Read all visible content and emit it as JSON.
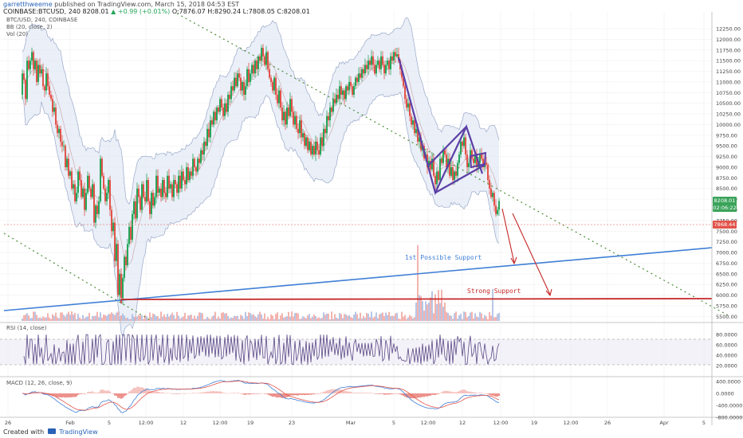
{
  "header": {
    "user": "garretthweeme",
    "published": "published on TradingView.com, March 15, 2018 04:53 EST",
    "symbol_line": "COINBASE:BTCUSD, 240",
    "price": "8208.01",
    "change": "+0.99 (+0.01%)",
    "ohlc": "O:7876.07 H:8290.24 L:7808.05 C:8208.01"
  },
  "indicators": {
    "symbol": "BTC/USD, 240, COINBASE",
    "bb": "BB (20, close, 2)",
    "vol": "Vol (20)",
    "rsi": "RSI (14, close)",
    "macd": "MACD (12, 26, close, 9)"
  },
  "price_axis": {
    "ticks": [
      "12250.00",
      "12000.00",
      "11750.00",
      "11500.00",
      "11250.00",
      "11000.00",
      "10750.00",
      "10500.00",
      "10250.00",
      "10000.00",
      "9750.00",
      "9500.00",
      "9250.00",
      "9000.00",
      "8750.00",
      "8500.00",
      "8250.00",
      "8000.00",
      "7750.00",
      "7500.00",
      "7250.00",
      "7000.00",
      "6750.00",
      "6500.00",
      "6250.00",
      "6000.00",
      "5750.00",
      "5500.00"
    ],
    "labels": {
      "current": "8208.01",
      "countdown": "02:06:22",
      "red": "7868.44"
    }
  },
  "rsi_axis": [
    "80.0000",
    "60.0000",
    "40.0000",
    "20.0000"
  ],
  "macd_axis": [
    "400.0000",
    "0.0000",
    "-400.0000",
    "-800.0000"
  ],
  "time_axis": [
    "26",
    "Feb",
    "5",
    "12:00",
    "12",
    "12:00",
    "19",
    "23",
    "Mar",
    "5",
    "12:00",
    "12",
    "12:00",
    "19",
    "12:00",
    "26",
    "Apr",
    "5"
  ],
  "annotations": {
    "first_support": "1st Possible Support",
    "strong_support": "Strong Support"
  },
  "footer": {
    "created": "Created with",
    "brand": "TradingView"
  },
  "colors": {
    "up": "#26a65b",
    "down": "#e2534a",
    "trend_blue": "#3f7fd6",
    "support_red": "#c62828",
    "wedge": "#5b3fa6",
    "dotted_green": "#4e8f3a",
    "bb_fill": "#dce4f4"
  },
  "chart_data": {
    "type": "candlestick",
    "title": "BTC/USD, 240, COINBASE",
    "ylim": [
      5450,
      12400
    ],
    "key_levels": {
      "strong_support": 5930,
      "last_close": 8208.01
    },
    "path_values": [
      [
        26,
        10700
      ],
      [
        28,
        11200
      ],
      [
        30,
        11050
      ],
      [
        32,
        10600
      ],
      [
        34,
        11500
      ],
      [
        36,
        11300
      ],
      [
        38,
        11500
      ],
      [
        40,
        11700
      ],
      [
        42,
        11300
      ],
      [
        44,
        11500
      ],
      [
        46,
        11000
      ],
      [
        48,
        11400
      ],
      [
        50,
        11200
      ],
      [
        52,
        11300
      ],
      [
        54,
        10900
      ],
      [
        56,
        10800
      ],
      [
        58,
        11200
      ],
      [
        60,
        10900
      ],
      [
        62,
        10700
      ],
      [
        64,
        10600
      ],
      [
        66,
        10300
      ],
      [
        68,
        10400
      ],
      [
        70,
        10000
      ],
      [
        72,
        9800
      ],
      [
        74,
        9900
      ],
      [
        76,
        9600
      ],
      [
        78,
        9500
      ],
      [
        80,
        9500
      ],
      [
        82,
        9000
      ],
      [
        84,
        9200
      ],
      [
        86,
        8800
      ],
      [
        88,
        8900
      ],
      [
        90,
        8500
      ],
      [
        92,
        8600
      ],
      [
        94,
        8200
      ],
      [
        96,
        8400
      ],
      [
        98,
        8900
      ],
      [
        100,
        8700
      ],
      [
        102,
        8300
      ],
      [
        104,
        8500
      ],
      [
        106,
        8000
      ],
      [
        108,
        8400
      ],
      [
        110,
        8800
      ],
      [
        112,
        8500
      ],
      [
        114,
        8300
      ],
      [
        116,
        8600
      ],
      [
        118,
        7700
      ],
      [
        120,
        8100
      ],
      [
        122,
        7900
      ],
      [
        124,
        8200
      ],
      [
        126,
        9200
      ],
      [
        128,
        8800
      ],
      [
        130,
        8500
      ],
      [
        132,
        8200
      ],
      [
        134,
        8400
      ],
      [
        136,
        8700
      ],
      [
        138,
        8000
      ],
      [
        140,
        7500
      ],
      [
        142,
        7700
      ],
      [
        144,
        6800
      ],
      [
        146,
        7200
      ],
      [
        148,
        6000
      ],
      [
        150,
        6500
      ],
      [
        152,
        5930
      ],
      [
        154,
        6400
      ],
      [
        156,
        6900
      ],
      [
        158,
        6700
      ],
      [
        160,
        7200
      ],
      [
        162,
        7600
      ],
      [
        164,
        7300
      ],
      [
        166,
        7900
      ],
      [
        168,
        8200
      ],
      [
        170,
        7800
      ],
      [
        172,
        8500
      ],
      [
        174,
        8300
      ],
      [
        176,
        8000
      ],
      [
        178,
        8600
      ],
      [
        180,
        8300
      ],
      [
        182,
        8200
      ],
      [
        184,
        8700
      ],
      [
        186,
        8200
      ],
      [
        188,
        7900
      ],
      [
        190,
        8400
      ],
      [
        192,
        8100
      ],
      [
        194,
        8300
      ],
      [
        196,
        8800
      ],
      [
        198,
        8400
      ],
      [
        200,
        8500
      ],
      [
        202,
        8300
      ],
      [
        204,
        8700
      ],
      [
        206,
        8400
      ],
      [
        208,
        8300
      ],
      [
        210,
        8800
      ],
      [
        212,
        8500
      ],
      [
        214,
        8600
      ],
      [
        216,
        8300
      ],
      [
        218,
        8700
      ],
      [
        220,
        8600
      ],
      [
        222,
        8400
      ],
      [
        224,
        8800
      ],
      [
        226,
        8500
      ],
      [
        228,
        8900
      ],
      [
        230,
        8700
      ],
      [
        232,
        8600
      ],
      [
        234,
        9000
      ],
      [
        236,
        8700
      ],
      [
        238,
        8900
      ],
      [
        240,
        8800
      ],
      [
        242,
        9200
      ],
      [
        244,
        9000
      ],
      [
        246,
        8900
      ],
      [
        248,
        9200
      ],
      [
        250,
        9100
      ],
      [
        252,
        9400
      ],
      [
        254,
        9300
      ],
      [
        256,
        9600
      ],
      [
        258,
        9500
      ],
      [
        260,
        9900
      ],
      [
        262,
        9700
      ],
      [
        264,
        10100
      ],
      [
        266,
        10000
      ],
      [
        268,
        10300
      ],
      [
        270,
        10100
      ],
      [
        272,
        10400
      ],
      [
        274,
        10300
      ],
      [
        276,
        10600
      ],
      [
        278,
        10400
      ],
      [
        280,
        10200
      ],
      [
        282,
        10500
      ],
      [
        284,
        10300
      ],
      [
        286,
        10700
      ],
      [
        288,
        10600
      ],
      [
        290,
        10900
      ],
      [
        292,
        10800
      ],
      [
        294,
        11100
      ],
      [
        296,
        10900
      ],
      [
        298,
        11200
      ],
      [
        300,
        11100
      ],
      [
        302,
        10800
      ],
      [
        304,
        11000
      ],
      [
        306,
        10700
      ],
      [
        308,
        10900
      ],
      [
        310,
        11300
      ],
      [
        312,
        11000
      ],
      [
        314,
        11200
      ],
      [
        316,
        11400
      ],
      [
        318,
        11200
      ],
      [
        320,
        11500
      ],
      [
        322,
        11300
      ],
      [
        324,
        11600
      ],
      [
        326,
        11500
      ],
      [
        328,
        11800
      ],
      [
        330,
        11600
      ],
      [
        332,
        11400
      ],
      [
        334,
        11700
      ],
      [
        336,
        11300
      ],
      [
        338,
        11100
      ],
      [
        340,
        11000
      ],
      [
        342,
        10800
      ],
      [
        344,
        11100
      ],
      [
        346,
        10700
      ],
      [
        348,
        10500
      ],
      [
        350,
        10800
      ],
      [
        352,
        10400
      ],
      [
        354,
        10100
      ],
      [
        356,
        10300
      ],
      [
        358,
        10000
      ],
      [
        360,
        10400
      ],
      [
        362,
        10200
      ],
      [
        364,
        10600
      ],
      [
        366,
        10300
      ],
      [
        368,
        10000
      ],
      [
        370,
        10200
      ],
      [
        372,
        9900
      ],
      [
        374,
        9800
      ],
      [
        376,
        10100
      ],
      [
        378,
        9700
      ],
      [
        380,
        9800
      ],
      [
        382,
        9500
      ],
      [
        384,
        9700
      ],
      [
        386,
        9400
      ],
      [
        388,
        9600
      ],
      [
        390,
        9300
      ],
      [
        392,
        9500
      ],
      [
        394,
        9300
      ],
      [
        396,
        9600
      ],
      [
        398,
        9400
      ],
      [
        400,
        9300
      ],
      [
        402,
        9700
      ],
      [
        404,
        9500
      ],
      [
        406,
        9900
      ],
      [
        408,
        9800
      ],
      [
        410,
        10200
      ],
      [
        412,
        10100
      ],
      [
        414,
        10400
      ],
      [
        416,
        10300
      ],
      [
        418,
        10600
      ],
      [
        420,
        10500
      ],
      [
        422,
        10700
      ],
      [
        424,
        10600
      ],
      [
        426,
        10900
      ],
      [
        428,
        10700
      ],
      [
        430,
        10800
      ],
      [
        432,
        10600
      ],
      [
        434,
        10900
      ],
      [
        436,
        10800
      ],
      [
        438,
        11000
      ],
      [
        440,
        10900
      ],
      [
        442,
        10700
      ],
      [
        444,
        10900
      ],
      [
        446,
        11100
      ],
      [
        448,
        11000
      ],
      [
        450,
        11200
      ],
      [
        452,
        11100
      ],
      [
        454,
        11300
      ],
      [
        456,
        11200
      ],
      [
        458,
        11400
      ],
      [
        460,
        11300
      ],
      [
        462,
        11500
      ],
      [
        464,
        11400
      ],
      [
        466,
        11600
      ],
      [
        468,
        11400
      ],
      [
        470,
        11200
      ],
      [
        472,
        11400
      ],
      [
        474,
        11500
      ],
      [
        476,
        11300
      ],
      [
        478,
        11600
      ],
      [
        480,
        11400
      ],
      [
        482,
        11200
      ],
      [
        484,
        11400
      ],
      [
        486,
        11500
      ],
      [
        488,
        11300
      ],
      [
        490,
        11600
      ],
      [
        492,
        11500
      ],
      [
        494,
        11700
      ],
      [
        496,
        11600
      ],
      [
        498,
        11650
      ],
      [
        500,
        11500
      ],
      [
        502,
        11300
      ],
      [
        504,
        11100
      ],
      [
        506,
        10900
      ],
      [
        508,
        10600
      ],
      [
        510,
        10400
      ],
      [
        512,
        10500
      ],
      [
        514,
        10200
      ],
      [
        516,
        10000
      ],
      [
        518,
        10100
      ],
      [
        520,
        9800
      ],
      [
        522,
        9900
      ],
      [
        524,
        9600
      ],
      [
        526,
        9700
      ],
      [
        528,
        9400
      ],
      [
        530,
        9500
      ],
      [
        532,
        9200
      ],
      [
        534,
        9300
      ],
      [
        536,
        9000
      ],
      [
        538,
        9150
      ],
      [
        540,
        8950
      ],
      [
        542,
        9200
      ],
      [
        544,
        8800
      ],
      [
        546,
        8600
      ],
      [
        548,
        8900
      ],
      [
        550,
        8700
      ],
      [
        552,
        9200
      ],
      [
        554,
        9100
      ],
      [
        556,
        9400
      ],
      [
        558,
        9300
      ],
      [
        560,
        9000
      ],
      [
        562,
        9200
      ],
      [
        564,
        8800
      ],
      [
        566,
        9000
      ],
      [
        568,
        8700
      ],
      [
        570,
        8900
      ],
      [
        572,
        8800
      ],
      [
        574,
        9100
      ],
      [
        576,
        9300
      ],
      [
        578,
        9600
      ],
      [
        580,
        9500
      ],
      [
        582,
        9700
      ],
      [
        584,
        9300
      ],
      [
        586,
        9000
      ],
      [
        588,
        9100
      ],
      [
        590,
        9400
      ],
      [
        592,
        9200
      ],
      [
        594,
        9100
      ],
      [
        596,
        9300
      ],
      [
        598,
        9000
      ],
      [
        600,
        9100
      ],
      [
        602,
        9300
      ],
      [
        604,
        9200
      ],
      [
        606,
        9000
      ],
      [
        608,
        9100
      ],
      [
        610,
        9050
      ],
      [
        612,
        8700
      ],
      [
        614,
        8500
      ],
      [
        616,
        8300
      ],
      [
        618,
        8400
      ],
      [
        620,
        8100
      ],
      [
        622,
        7900
      ],
      [
        624,
        8000
      ],
      [
        626,
        8208
      ]
    ]
  }
}
